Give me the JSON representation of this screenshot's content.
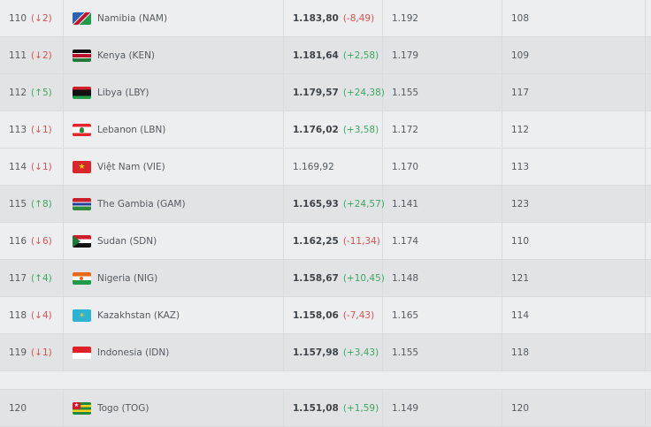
{
  "colors": {
    "up": "#3fa864",
    "down": "#d9534f"
  },
  "rows": [
    {
      "rank": "110",
      "change": "(↓2)",
      "dir": "down",
      "country": "Namibia (NAM)",
      "flag": "NAM",
      "points": "1.183,80",
      "points_change": "(-8,49)",
      "pdir": "down",
      "previous_points": "1.192",
      "previous_rank": "108"
    },
    {
      "rank": "111",
      "change": "(↓2)",
      "dir": "down",
      "country": "Kenya (KEN)",
      "flag": "KEN",
      "points": "1.181,64",
      "points_change": "(+2,58)",
      "pdir": "up",
      "previous_points": "1.179",
      "previous_rank": "109"
    },
    {
      "rank": "112",
      "change": "(↑5)",
      "dir": "up",
      "country": "Libya (LBY)",
      "flag": "LBY",
      "points": "1.179,57",
      "points_change": "(+24,38)",
      "pdir": "up",
      "previous_points": "1.155",
      "previous_rank": "117"
    },
    {
      "rank": "113",
      "change": "(↓1)",
      "dir": "down",
      "country": "Lebanon (LBN)",
      "flag": "LBN",
      "points": "1.176,02",
      "points_change": "(+3,58)",
      "pdir": "up",
      "previous_points": "1.172",
      "previous_rank": "112"
    },
    {
      "rank": "114",
      "change": "(↓1)",
      "dir": "down",
      "country": "Việt Nam (VIE)",
      "flag": "VIE",
      "points": "1.169,92",
      "points_change": "",
      "pdir": "",
      "previous_points": "1.170",
      "previous_rank": "113"
    },
    {
      "rank": "115",
      "change": "(↑8)",
      "dir": "up",
      "country": "The Gambia (GAM)",
      "flag": "GAM",
      "points": "1.165,93",
      "points_change": "(+24,57)",
      "pdir": "up",
      "previous_points": "1.141",
      "previous_rank": "123"
    },
    {
      "rank": "116",
      "change": "(↓6)",
      "dir": "down",
      "country": "Sudan (SDN)",
      "flag": "SDN",
      "points": "1.162,25",
      "points_change": "(-11,34)",
      "pdir": "down",
      "previous_points": "1.174",
      "previous_rank": "110"
    },
    {
      "rank": "117",
      "change": "(↑4)",
      "dir": "up",
      "country": "Nigeria (NIG)",
      "flag": "NIG",
      "points": "1.158,67",
      "points_change": "(+10,45)",
      "pdir": "up",
      "previous_points": "1.148",
      "previous_rank": "121"
    },
    {
      "rank": "118",
      "change": "(↓4)",
      "dir": "down",
      "country": "Kazakhstan (KAZ)",
      "flag": "KAZ",
      "points": "1.158,06",
      "points_change": "(-7,43)",
      "pdir": "down",
      "previous_points": "1.165",
      "previous_rank": "114"
    },
    {
      "rank": "119",
      "change": "(↓1)",
      "dir": "down",
      "country": "Indonesia (IDN)",
      "flag": "IDN",
      "points": "1.157,98",
      "points_change": "(+3,43)",
      "pdir": "up",
      "previous_points": "1.155",
      "previous_rank": "118"
    },
    {
      "rank": "120",
      "change": "",
      "dir": "",
      "country": "Togo (TOG)",
      "flag": "TOG",
      "points": "1.151,08",
      "points_change": "(+1,59)",
      "pdir": "up",
      "previous_points": "1.149",
      "previous_rank": "120"
    }
  ]
}
